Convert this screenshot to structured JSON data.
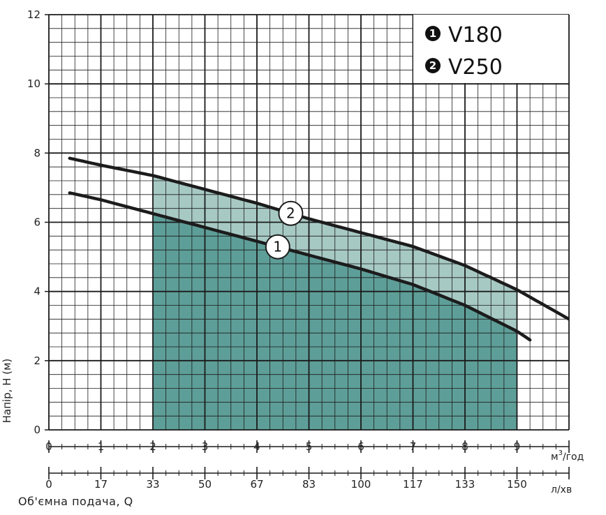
{
  "chart_data": {
    "type": "line",
    "ylabel": "Напір, Н (м)",
    "xlabel": "Об'ємна подача, Q",
    "x_unit": "м",
    "x_unit_sup": "3",
    "x_unit_tail": "/год",
    "x2_unit": "л/хв",
    "ylim": [
      0,
      12
    ],
    "xlim": [
      0,
      10
    ],
    "grid": true,
    "legend_position": "top-right",
    "y_ticks": [
      "0",
      "2",
      "4",
      "6",
      "8",
      "10",
      "12"
    ],
    "x_ticks": [
      "0",
      "1",
      "2",
      "3",
      "4",
      "5",
      "6",
      "7",
      "8",
      "9"
    ],
    "x2_ticks": [
      "0",
      "17",
      "33",
      "50",
      "67",
      "83",
      "100",
      "117",
      "133",
      "150"
    ],
    "legend": [
      {
        "num": "1",
        "label": "V180"
      },
      {
        "num": "2",
        "label": "V250"
      }
    ],
    "series": [
      {
        "name": "V180",
        "marker": "1",
        "x": [
          0.4,
          1.0,
          2.0,
          3.0,
          4.0,
          5.0,
          6.0,
          7.0,
          8.0,
          9.0,
          9.25
        ],
        "y": [
          6.85,
          6.65,
          6.25,
          5.85,
          5.45,
          5.05,
          4.65,
          4.2,
          3.6,
          2.85,
          2.6
        ]
      },
      {
        "name": "V250",
        "marker": "2",
        "x": [
          0.4,
          1.0,
          2.0,
          3.0,
          4.0,
          5.0,
          6.0,
          7.0,
          8.0,
          9.0,
          10.0
        ],
        "y": [
          7.85,
          7.65,
          7.35,
          6.95,
          6.55,
          6.1,
          5.7,
          5.3,
          4.75,
          4.05,
          3.2
        ]
      }
    ],
    "shaded_region": {
      "x_min": 2,
      "x_max": 9
    },
    "colors": {
      "fill_dark": "#5e9e98",
      "fill_light": "#a7c9c4",
      "curve": "#1c1c1c",
      "grid": "#1a1a1a",
      "legend_bullet": "#111111"
    }
  }
}
